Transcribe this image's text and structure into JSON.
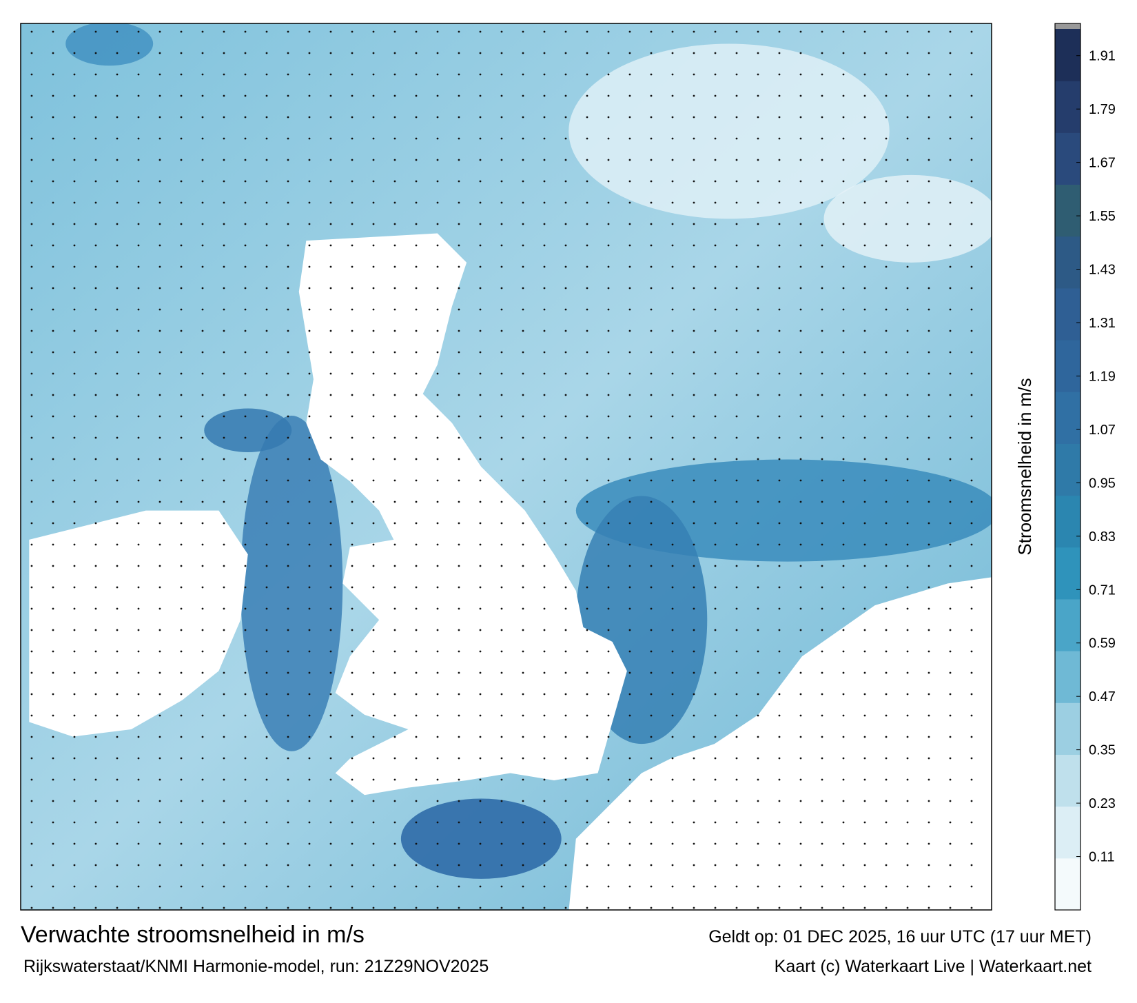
{
  "chart_data": {
    "type": "colorbar",
    "title": "Verwachte stroomsnelheid in m/s",
    "subtitle": "Rijkswaterstaat/KNMI Harmonie-model, run: 21Z29NOV2025",
    "valid_time": "Geldt op: 01 DEC 2025, 16 uur UTC (17 uur MET)",
    "credit": "Kaart (c) Waterkaart Live | Waterkaart.net",
    "colorbar_label": "Stroomsnelheid in m/s",
    "clim": [
      -0.01,
      1.97
    ],
    "colors": [
      "#f4fafc",
      "#dceef5",
      "#bfe0ec",
      "#9ccfe2",
      "#6fb9d5",
      "#4aa5c8",
      "#2f93bb",
      "#2b86b0",
      "#2f7aa8",
      "#3070a4",
      "#2f669c",
      "#2f5f94",
      "#2d5a86",
      "#2f5d72",
      "#2a4a7c",
      "#253d6c",
      "#1d2f58"
    ],
    "ticks": [
      0.11,
      0.23,
      0.35,
      0.47,
      0.59,
      0.71,
      0.83,
      0.95,
      1.07,
      1.19,
      1.31,
      1.43,
      1.55,
      1.67,
      1.79,
      1.91
    ]
  }
}
